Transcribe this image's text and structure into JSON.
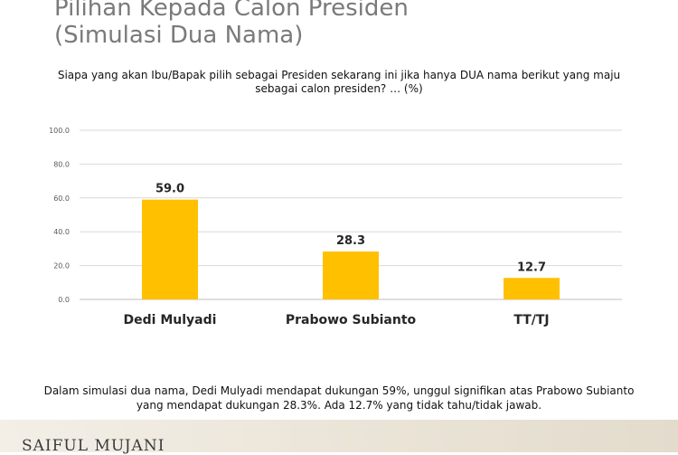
{
  "header": {
    "title_line1": "Pilihan Kepada Calon Presiden",
    "title_line2": "(Simulasi Dua Nama)"
  },
  "question": "Siapa yang akan Ibu/Bapak pilih sebagai Presiden sekarang ini jika hanya DUA nama berikut yang maju sebagai calon presiden? … (%)",
  "chart_data": {
    "type": "bar",
    "categories": [
      "Dedi Mulyadi",
      "Prabowo Subianto",
      "TT/TJ"
    ],
    "values": [
      59.0,
      28.3,
      12.7
    ],
    "value_labels": [
      "59.0",
      "28.3",
      "12.7"
    ],
    "ylim": [
      0,
      100
    ],
    "yticks": [
      "0.0",
      "20.0",
      "40.0",
      "60.0",
      "80.0",
      "100.0"
    ],
    "ytick_values": [
      0,
      20,
      40,
      60,
      80,
      100
    ],
    "grid": true,
    "bar_color": "#FFC000"
  },
  "note": "Dalam simulasi dua nama, Dedi Mulyadi mendapat dukungan 59%, unggul signifikan atas Prabowo Subianto yang mendapat dukungan 28.3%. Ada 12.7% yang tidak tahu/tidak jawab.",
  "footer": {
    "brand": "SAIFUL MUJANI"
  }
}
